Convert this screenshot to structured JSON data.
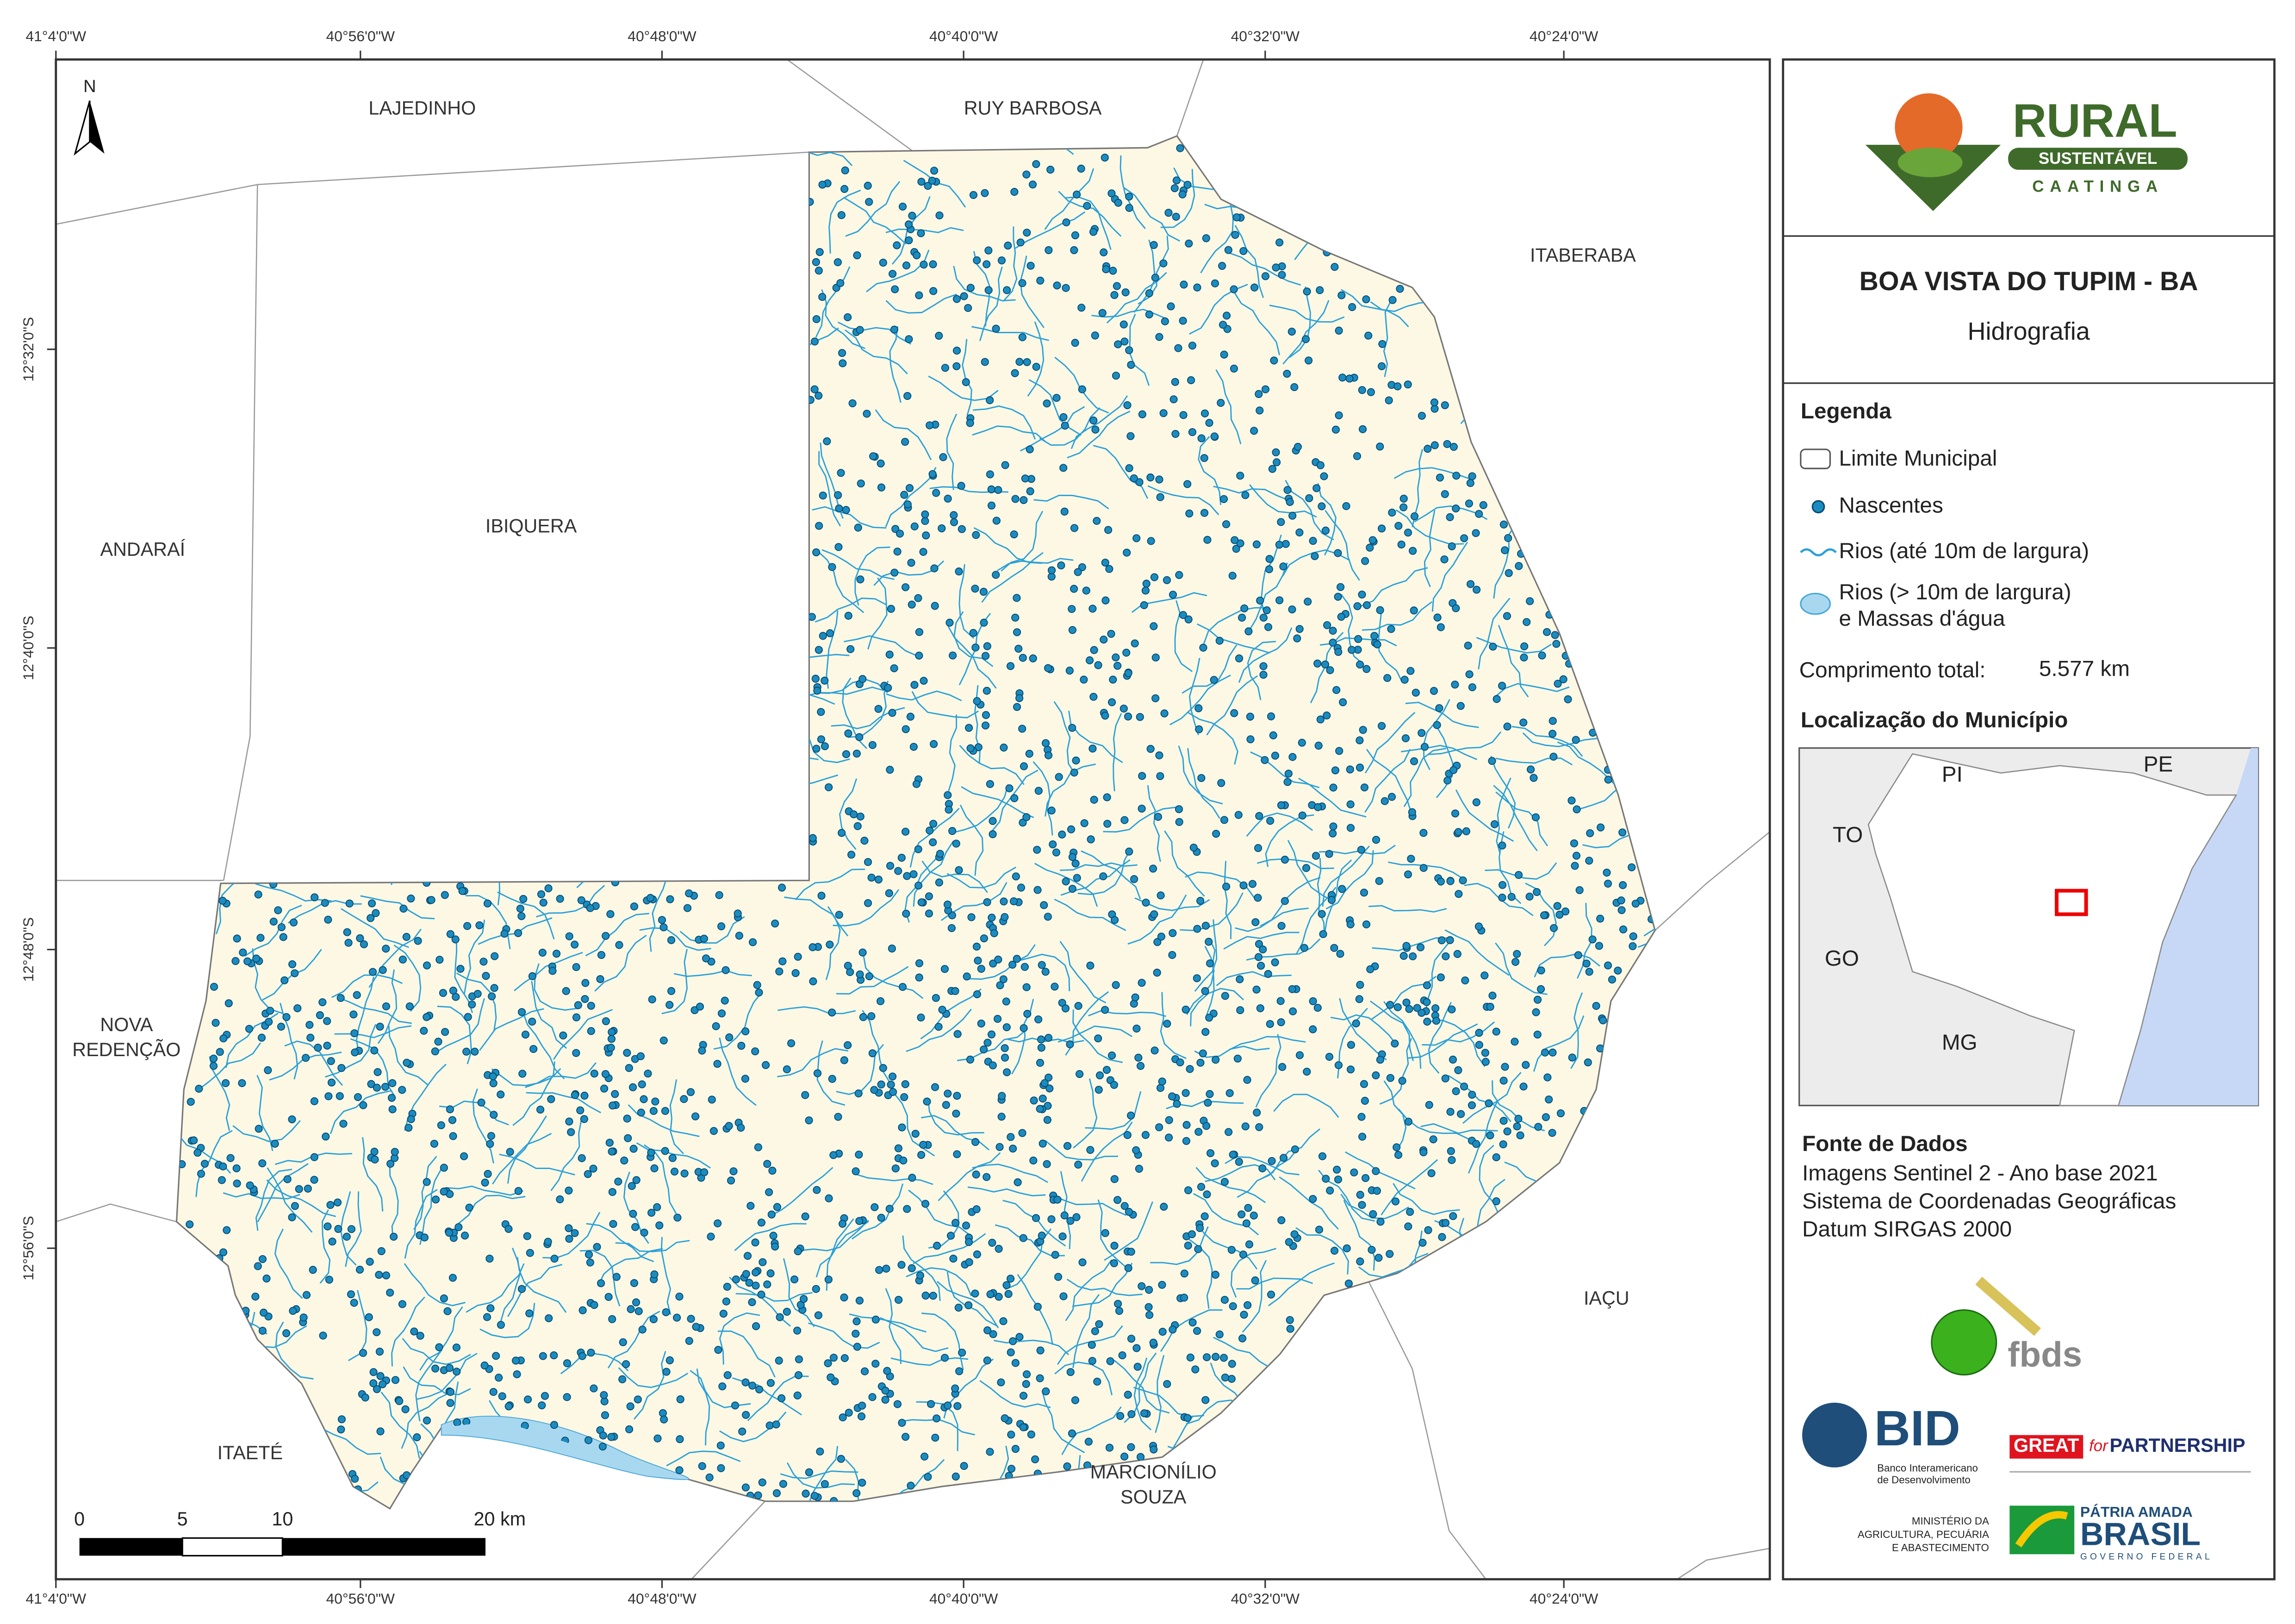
{
  "map": {
    "north": "N",
    "municipalities": [
      {
        "lines": [
          "LAJEDINHO"
        ]
      },
      {
        "lines": [
          "RUY BARBOSA"
        ]
      },
      {
        "lines": [
          "ITABERABA"
        ]
      },
      {
        "lines": [
          "ANDARAÍ"
        ]
      },
      {
        "lines": [
          "IBIQUERA"
        ]
      },
      {
        "lines": [
          "NOVA",
          "REDENÇÃO"
        ]
      },
      {
        "lines": [
          "ITAETÉ"
        ]
      },
      {
        "lines": [
          "MARCIONÍLIO",
          "SOUZA"
        ]
      },
      {
        "lines": [
          "IAÇU"
        ]
      }
    ],
    "coordinates": {
      "longitude": [
        "41°4'0\"W",
        "40°56'0\"W",
        "40°48'0\"W",
        "40°40'0\"W",
        "40°32'0\"W",
        "40°24'0\"W"
      ],
      "latitude": [
        "12°32'0\"S",
        "12°40'0\"S",
        "12°48'0\"S",
        "12°56'0\"S"
      ]
    },
    "scale_bar": [
      "0",
      "5",
      "10",
      "20 km"
    ]
  },
  "panel": {
    "logo": {
      "rural": "RURAL",
      "sustentavel": "SUSTENTÁVEL",
      "caatinga": "CAATINGA"
    },
    "title": "BOA VISTA DO TUPIM - BA",
    "subtitle": "Hidrografia",
    "legend": {
      "title": "Legenda",
      "items": [
        {
          "lines": [
            "Limite Municipal"
          ]
        },
        {
          "lines": [
            "Nascentes"
          ]
        },
        {
          "lines": [
            "Rios (até 10m de largura)"
          ]
        },
        {
          "lines": [
            "Rios (> 10m de largura)",
            "e Massas d'água"
          ]
        }
      ],
      "total_label": "Comprimento total:",
      "total_value": "5.577 km"
    },
    "location": {
      "title": "Localização do Município",
      "states": [
        "PI",
        "PE",
        "TO",
        "GO",
        "MG"
      ]
    },
    "sources": {
      "title": "Fonte de Dados",
      "lines": [
        "Imagens Sentinel 2 - Ano base 2021",
        "Sistema de Coordenadas Geográficas",
        "Datum SIRGAS 2000"
      ]
    },
    "partners": {
      "fbds": "fbds",
      "bid": "BID",
      "bid_full": [
        "Banco Interamericano",
        "de Desenvolvimento"
      ],
      "great": "GREAT",
      "for": "for",
      "partnership": "PARTNERSHIP",
      "ministry": [
        "MINISTÉRIO DA",
        "AGRICULTURA, PECUÁRIA",
        "E ABASTECIMENTO"
      ],
      "patria": "PÁTRIA AMADA",
      "brasil": "BRASIL",
      "governo": "GOVERNO FEDERAL"
    }
  }
}
